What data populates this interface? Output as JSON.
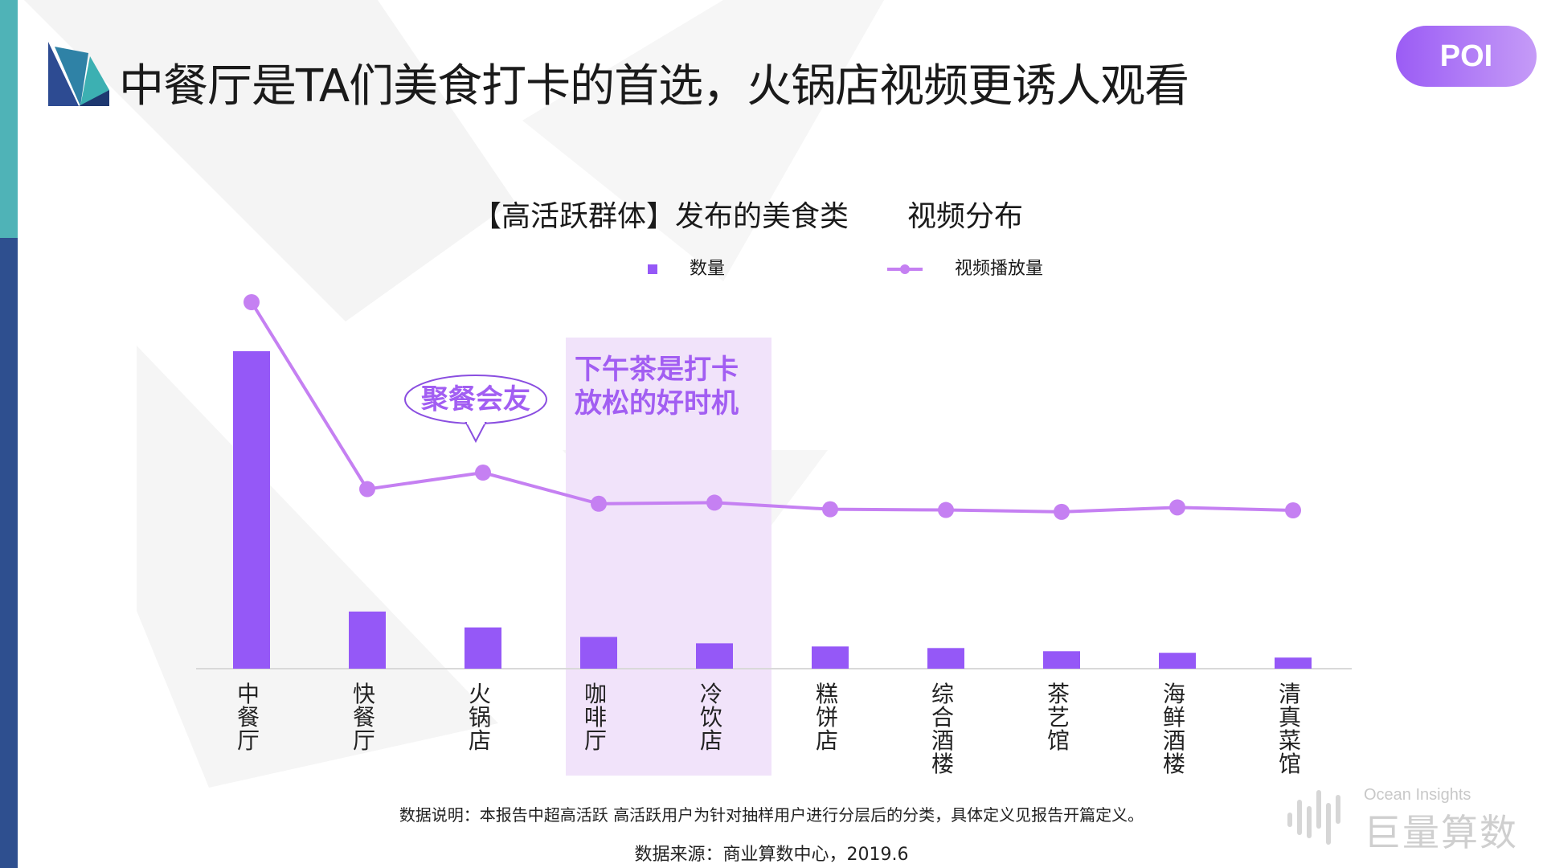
{
  "header": {
    "title": "中餐厅是TA们美食打卡的首选，火锅店视频更诱人观看",
    "badge": "POI"
  },
  "chart_data": {
    "type": "bar",
    "title": "【高活跃群体】发布的美食类",
    "subtitle": "视频分布",
    "categories": [
      "中餐厅",
      "快餐厅",
      "火锅店",
      "咖啡厅",
      "冷饮店",
      "糕饼店",
      "综合酒楼",
      "茶艺馆",
      "海鲜酒楼",
      "清真菜馆"
    ],
    "series": [
      {
        "name": "数量",
        "kind": "bar",
        "color": "#9558f7",
        "values": [
          100,
          18,
          13,
          10,
          8,
          7,
          6.5,
          5.5,
          5,
          3.5
        ]
      },
      {
        "name": "视频播放量",
        "kind": "line",
        "color": "#c580f2",
        "values": [
          100,
          49,
          53.5,
          45,
          45.3,
          43.5,
          43.3,
          42.8,
          44,
          43.2
        ]
      }
    ],
    "highlight": {
      "categories": [
        "咖啡厅",
        "冷饮店"
      ],
      "label_lines": [
        "下午茶是打卡",
        "放松的好时机"
      ],
      "color": "#f1e3fa"
    },
    "callout": {
      "category": "火锅店",
      "text": "聚餐会友"
    },
    "grid": false,
    "legend_position": "top"
  },
  "footer": {
    "note": "数据说明：本报告中超高活跃 高活跃用户为针对抽样用户进行分层后的分类，具体定义见报告开篇定义。",
    "source": "数据来源：商业算数中心，2019.6"
  },
  "brand": {
    "en": "Ocean Insights",
    "cn": "巨量算数"
  },
  "colors": {
    "bar": "#9558f7",
    "line": "#c580f2",
    "highlight_text": "#a25ef2",
    "stripe_top": "#4fb3b7",
    "stripe_bottom": "#2e4f8f"
  }
}
